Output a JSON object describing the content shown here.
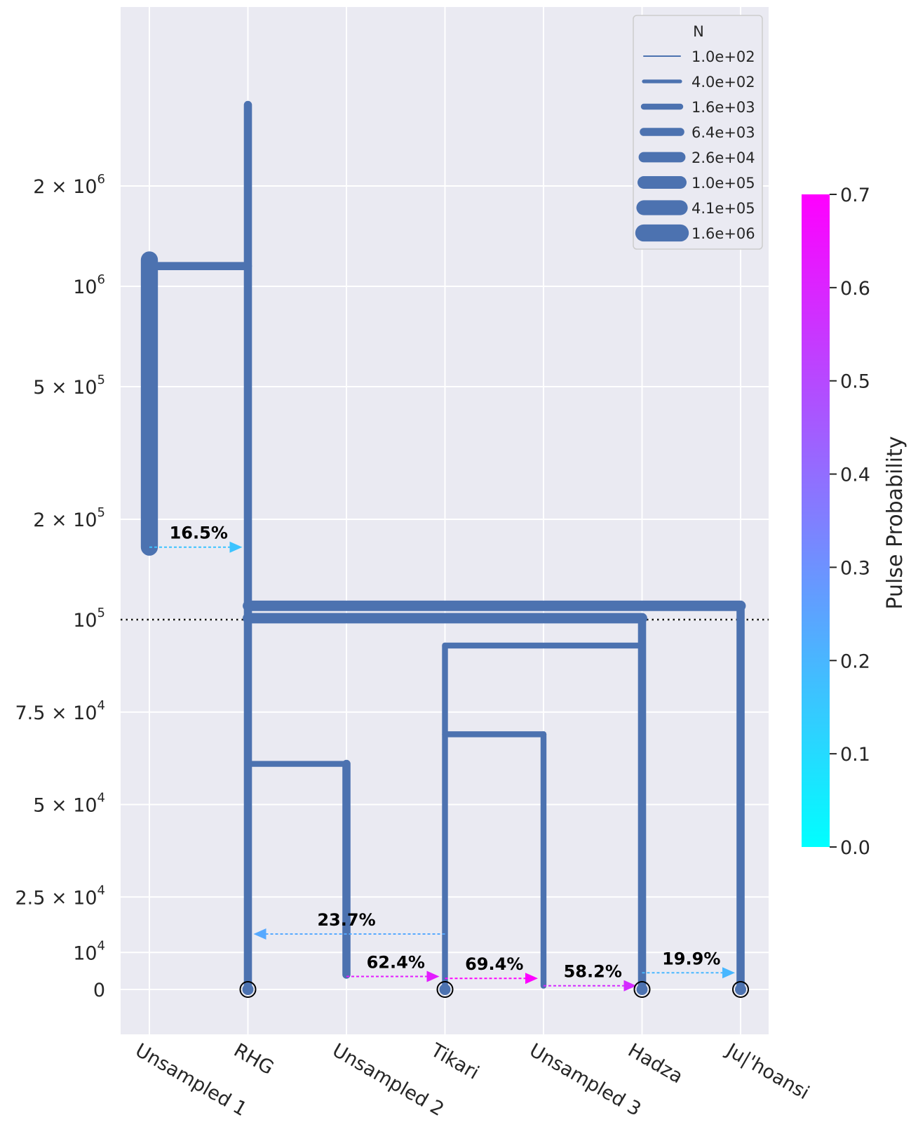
{
  "chart_data": {
    "type": "demography-tree",
    "title": "",
    "xlabel": "",
    "ylabel": "",
    "populations": [
      "Unsampled 1",
      "RHG",
      "Unsampled 2",
      "Tikari",
      "Unsampled 3",
      "Hadza",
      "Ju|'hoansi"
    ],
    "y_axis": {
      "ticks": [
        {
          "value": 0,
          "label": "0"
        },
        {
          "value": 10000,
          "label": "10",
          "exp": "4"
        },
        {
          "value": 25000,
          "label": "2.5 × 10",
          "exp": "4"
        },
        {
          "value": 50000,
          "label": "5 × 10",
          "exp": "4"
        },
        {
          "value": 75000,
          "label": "7.5 × 10",
          "exp": "4"
        },
        {
          "value": 100000,
          "label": "10",
          "exp": "5"
        },
        {
          "value": 200000,
          "label": "2 × 10",
          "exp": "5"
        },
        {
          "value": 500000,
          "label": "5 × 10",
          "exp": "5"
        },
        {
          "value": 1000000,
          "label": "10",
          "exp": "6"
        },
        {
          "value": 2000000,
          "label": "2 × 10",
          "exp": "6"
        }
      ],
      "scale": "linear below 1e5, log above 1e5",
      "break_value": 100000,
      "ylim": [
        -10000,
        5000000
      ]
    },
    "branches": [
      {
        "pop": "RHG",
        "start": 0,
        "end": 3500000,
        "width_N": 6400
      },
      {
        "pop": "Unsampled 1",
        "start": 165000,
        "end": 1200000,
        "width_N": 1600000
      },
      {
        "pop": "Unsampled 2",
        "start": 4000,
        "end": 61000,
        "width_N": 6400
      },
      {
        "pop": "Tikari",
        "start": 0,
        "end": 93000,
        "width_N": 1600
      },
      {
        "pop": "Unsampled 3",
        "start": 1000,
        "end": 69000,
        "width_N": 1600
      },
      {
        "pop": "Hadza",
        "start": 0,
        "end": 101000,
        "width_N": 6400
      },
      {
        "pop": "Ju|'hoansi",
        "start": 0,
        "end": 110000,
        "width_N": 6400
      }
    ],
    "splits": [
      {
        "from": "RHG",
        "to": "Unsampled 1",
        "time": 1150000,
        "width_N": 6400
      },
      {
        "from": "RHG",
        "to": "Ju|'hoansi",
        "time": 110000,
        "width_N": 26000
      },
      {
        "from": "RHG",
        "to": "Hadza",
        "time": 101000,
        "width_N": 26000
      },
      {
        "from": "Tikari",
        "to": "Hadza",
        "time": 93000,
        "width_N": 1600
      },
      {
        "from": "Tikari",
        "to": "Unsampled 3",
        "time": 69000,
        "width_N": 1600
      },
      {
        "from": "RHG",
        "to": "Unsampled 2",
        "time": 61000,
        "width_N": 1600
      }
    ],
    "pulses": [
      {
        "source": "Unsampled 1",
        "dest": "RHG",
        "time": 165000,
        "probability": 0.165,
        "label": "16.5%"
      },
      {
        "source": "Tikari",
        "dest": "RHG",
        "time": 15000,
        "probability": 0.237,
        "label": "23.7%"
      },
      {
        "source": "Unsampled 2",
        "dest": "Tikari",
        "time": 3500,
        "probability": 0.624,
        "label": "62.4%"
      },
      {
        "source": "Tikari",
        "dest": "Unsampled 3",
        "time": 3000,
        "probability": 0.694,
        "label": "69.4%"
      },
      {
        "source": "Unsampled 3",
        "dest": "Hadza",
        "time": 1000,
        "probability": 0.582,
        "label": "58.2%"
      },
      {
        "source": "Hadza",
        "dest": "Ju|'hoansi",
        "time": 4500,
        "probability": 0.199,
        "label": "19.9%"
      }
    ],
    "samples": [
      "RHG",
      "Tikari",
      "Hadza",
      "Ju|'hoansi"
    ],
    "reference_line": {
      "value": 100000,
      "style": "dotted"
    },
    "legend": {
      "title": "N",
      "placement": "top-right",
      "entries": [
        {
          "label": "1.0e+02",
          "N": 100
        },
        {
          "label": "4.0e+02",
          "N": 400
        },
        {
          "label": "1.6e+03",
          "N": 1600
        },
        {
          "label": "6.4e+03",
          "N": 6400
        },
        {
          "label": "2.6e+04",
          "N": 26000
        },
        {
          "label": "1.0e+05",
          "N": 100000
        },
        {
          "label": "4.1e+05",
          "N": 410000
        },
        {
          "label": "1.6e+06",
          "N": 1600000
        }
      ]
    },
    "colorbar": {
      "label": "Pulse Probability",
      "range": [
        0.0,
        0.7
      ],
      "ticks": [
        "0.0",
        "0.1",
        "0.2",
        "0.3",
        "0.4",
        "0.5",
        "0.6",
        "0.7"
      ],
      "colors": [
        "#00ffff",
        "#ff00ff"
      ]
    },
    "grid": true,
    "branch_color": "#4c72b0",
    "plot_background": "#eaeaf2"
  }
}
